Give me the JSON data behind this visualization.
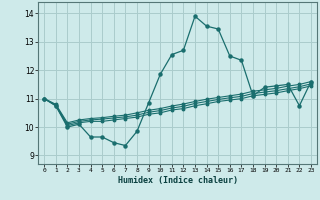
{
  "xlabel": "Humidex (Indice chaleur)",
  "background_color": "#ceeaea",
  "grid_color": "#aacccc",
  "line_color": "#1a6e6e",
  "x_ticks": [
    0,
    1,
    2,
    3,
    4,
    5,
    6,
    7,
    8,
    9,
    10,
    11,
    12,
    13,
    14,
    15,
    16,
    17,
    18,
    19,
    20,
    21,
    22,
    23
  ],
  "y_ticks": [
    9,
    10,
    11,
    12,
    13,
    14
  ],
  "ylim": [
    8.7,
    14.4
  ],
  "xlim": [
    -0.5,
    23.5
  ],
  "series": [
    [
      11.0,
      10.75,
      10.0,
      10.1,
      9.65,
      9.65,
      9.45,
      9.35,
      9.85,
      10.85,
      11.85,
      12.55,
      12.7,
      13.9,
      13.55,
      13.45,
      12.5,
      12.35,
      11.1,
      11.4,
      11.45,
      11.5,
      10.75,
      11.6
    ],
    [
      11.0,
      10.75,
      10.05,
      10.15,
      10.2,
      10.2,
      10.25,
      10.3,
      10.35,
      10.45,
      10.5,
      10.6,
      10.65,
      10.75,
      10.82,
      10.9,
      10.95,
      11.0,
      11.1,
      11.15,
      11.2,
      11.28,
      11.35,
      11.45
    ],
    [
      11.0,
      10.78,
      10.1,
      10.2,
      10.25,
      10.28,
      10.32,
      10.36,
      10.42,
      10.52,
      10.58,
      10.67,
      10.73,
      10.83,
      10.9,
      10.97,
      11.03,
      11.08,
      11.18,
      11.23,
      11.28,
      11.35,
      11.42,
      11.52
    ],
    [
      11.0,
      10.8,
      10.15,
      10.25,
      10.3,
      10.33,
      10.38,
      10.42,
      10.5,
      10.59,
      10.65,
      10.74,
      10.81,
      10.9,
      10.98,
      11.04,
      11.1,
      11.16,
      11.26,
      11.31,
      11.36,
      11.44,
      11.5,
      11.6
    ]
  ]
}
